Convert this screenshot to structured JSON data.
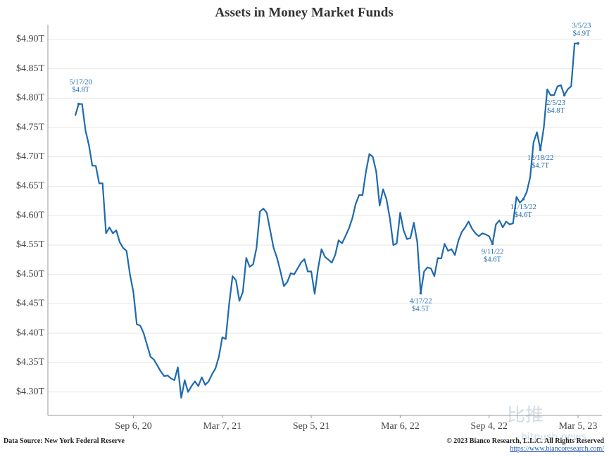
{
  "chart_data": {
    "type": "line",
    "title": "Assets in Money Market Funds",
    "x": [
      "2020-05-10",
      "2020-05-17",
      "2020-05-24",
      "2020-05-31",
      "2020-06-07",
      "2020-06-14",
      "2020-06-21",
      "2020-06-28",
      "2020-07-05",
      "2020-07-12",
      "2020-07-19",
      "2020-07-26",
      "2020-08-02",
      "2020-08-09",
      "2020-08-16",
      "2020-08-23",
      "2020-08-30",
      "2020-09-06",
      "2020-09-13",
      "2020-09-20",
      "2020-09-27",
      "2020-10-04",
      "2020-10-11",
      "2020-10-18",
      "2020-10-25",
      "2020-11-01",
      "2020-11-08",
      "2020-11-15",
      "2020-11-22",
      "2020-11-29",
      "2020-12-06",
      "2020-12-13",
      "2020-12-20",
      "2020-12-27",
      "2021-01-03",
      "2021-01-10",
      "2021-01-17",
      "2021-01-24",
      "2021-01-31",
      "2021-02-07",
      "2021-02-14",
      "2021-02-21",
      "2021-02-28",
      "2021-03-07",
      "2021-03-14",
      "2021-03-21",
      "2021-03-28",
      "2021-04-04",
      "2021-04-11",
      "2021-04-18",
      "2021-04-25",
      "2021-05-02",
      "2021-05-09",
      "2021-05-16",
      "2021-05-23",
      "2021-05-30",
      "2021-06-06",
      "2021-06-13",
      "2021-06-20",
      "2021-06-27",
      "2021-07-04",
      "2021-07-11",
      "2021-07-18",
      "2021-07-25",
      "2021-08-01",
      "2021-08-08",
      "2021-08-15",
      "2021-08-22",
      "2021-08-29",
      "2021-09-05",
      "2021-09-12",
      "2021-09-19",
      "2021-09-26",
      "2021-10-03",
      "2021-10-10",
      "2021-10-17",
      "2021-10-24",
      "2021-10-31",
      "2021-11-07",
      "2021-11-14",
      "2021-11-21",
      "2021-11-28",
      "2021-12-05",
      "2021-12-12",
      "2021-12-19",
      "2021-12-26",
      "2022-01-02",
      "2022-01-09",
      "2022-01-16",
      "2022-01-23",
      "2022-01-30",
      "2022-02-06",
      "2022-02-13",
      "2022-02-20",
      "2022-02-27",
      "2022-03-06",
      "2022-03-13",
      "2022-03-20",
      "2022-03-27",
      "2022-04-03",
      "2022-04-10",
      "2022-04-17",
      "2022-04-24",
      "2022-05-01",
      "2022-05-08",
      "2022-05-15",
      "2022-05-22",
      "2022-05-29",
      "2022-06-05",
      "2022-06-12",
      "2022-06-19",
      "2022-06-26",
      "2022-07-03",
      "2022-07-10",
      "2022-07-17",
      "2022-07-24",
      "2022-07-31",
      "2022-08-07",
      "2022-08-14",
      "2022-08-21",
      "2022-08-28",
      "2022-09-04",
      "2022-09-11",
      "2022-09-18",
      "2022-09-25",
      "2022-10-02",
      "2022-10-09",
      "2022-10-16",
      "2022-10-23",
      "2022-10-30",
      "2022-11-06",
      "2022-11-13",
      "2022-11-20",
      "2022-11-27",
      "2022-12-04",
      "2022-12-11",
      "2022-12-18",
      "2022-12-25",
      "2023-01-01",
      "2023-01-08",
      "2023-01-15",
      "2023-01-22",
      "2023-01-29",
      "2023-02-05",
      "2023-02-12",
      "2023-02-19",
      "2023-02-26",
      "2023-03-05"
    ],
    "series": [
      {
        "color": "#1f6aad",
        "values": [
          4.77,
          4.79,
          4.79,
          4.745,
          4.72,
          4.685,
          4.685,
          4.655,
          4.655,
          4.57,
          4.58,
          4.57,
          4.575,
          4.555,
          4.545,
          4.54,
          4.5,
          4.47,
          4.415,
          4.413,
          4.4,
          4.38,
          4.36,
          4.355,
          4.345,
          4.335,
          4.327,
          4.328,
          4.323,
          4.32,
          4.342,
          4.29,
          4.32,
          4.3,
          4.31,
          4.318,
          4.31,
          4.325,
          4.312,
          4.318,
          4.33,
          4.34,
          4.36,
          4.393,
          4.39,
          4.45,
          4.497,
          4.49,
          4.455,
          4.47,
          4.528,
          4.513,
          4.517,
          4.545,
          4.607,
          4.612,
          4.605,
          4.575,
          4.545,
          4.528,
          4.505,
          4.48,
          4.487,
          4.502,
          4.5,
          4.51,
          4.52,
          4.526,
          4.505,
          4.505,
          4.467,
          4.51,
          4.543,
          4.53,
          4.525,
          4.52,
          4.533,
          4.558,
          4.553,
          4.565,
          4.578,
          4.595,
          4.62,
          4.635,
          4.635,
          4.675,
          4.705,
          4.7,
          4.675,
          4.617,
          4.645,
          4.628,
          4.595,
          4.55,
          4.553,
          4.605,
          4.575,
          4.56,
          4.562,
          4.588,
          4.555,
          4.468,
          4.505,
          4.512,
          4.51,
          4.497,
          4.528,
          4.527,
          4.552,
          4.54,
          4.543,
          4.533,
          4.557,
          4.572,
          4.58,
          4.59,
          4.578,
          4.57,
          4.565,
          4.57,
          4.568,
          4.565,
          4.552,
          4.585,
          4.592,
          4.58,
          4.59,
          4.585,
          4.587,
          4.632,
          4.622,
          4.628,
          4.64,
          4.665,
          4.725,
          4.742,
          4.712,
          4.75,
          4.815,
          4.805,
          4.805,
          4.82,
          4.822,
          4.805,
          4.815,
          4.82,
          4.893,
          4.893
        ]
      }
    ],
    "xlim": [
      "2020-03-15",
      "2023-04-23"
    ],
    "xticks": [
      {
        "value": "2020-09-06",
        "label": "Sep 6, 20"
      },
      {
        "value": "2021-03-07",
        "label": "Mar 7, 21"
      },
      {
        "value": "2021-09-05",
        "label": "Sep 5, 21"
      },
      {
        "value": "2022-03-06",
        "label": "Mar 6, 22"
      },
      {
        "value": "2022-09-04",
        "label": "Sep 4, 22"
      },
      {
        "value": "2023-03-05",
        "label": "Mar 5, 23"
      }
    ],
    "ylim": [
      4.26,
      4.925
    ],
    "yticks": [
      {
        "value": 4.3,
        "label": "$4.30T"
      },
      {
        "value": 4.35,
        "label": "$4.35T"
      },
      {
        "value": 4.4,
        "label": "$4.40T"
      },
      {
        "value": 4.45,
        "label": "$4.45T"
      },
      {
        "value": 4.5,
        "label": "$4.50T"
      },
      {
        "value": 4.55,
        "label": "$4.55T"
      },
      {
        "value": 4.6,
        "label": "$4.60T"
      },
      {
        "value": 4.65,
        "label": "$4.65T"
      },
      {
        "value": 4.7,
        "label": "$4.70T"
      },
      {
        "value": 4.75,
        "label": "$4.75T"
      },
      {
        "value": 4.8,
        "label": "$4.80T"
      },
      {
        "value": 4.85,
        "label": "$4.85T"
      },
      {
        "value": 4.9,
        "label": "$4.90T"
      }
    ],
    "grid": true,
    "annotations": [
      {
        "x": "2020-05-17",
        "text": "5/17/20",
        "value_label": "$4.8T"
      },
      {
        "x": "2022-04-17",
        "text": "4/17/22",
        "value_label": "$4.5T"
      },
      {
        "x": "2022-09-11",
        "text": "9/11/22",
        "value_label": "$4.6T"
      },
      {
        "x": "2022-11-13",
        "text": "11/13/22",
        "value_label": "$4.6T"
      },
      {
        "x": "2022-12-18",
        "text": "12/18/22",
        "value_label": "$4.7T"
      },
      {
        "x": "2023-02-05",
        "text": "2/5/23",
        "value_label": "$4.8T"
      },
      {
        "x": "2023-03-05",
        "text": "3/5/23",
        "value_label": "$4.9T"
      }
    ]
  },
  "footer": {
    "source": "Data Source: New York Federal Reserve",
    "copyright": "© 2023 Bianco Research, L.L.C. All Rights Reserved",
    "url": "https://www.biancoresearch.com/"
  },
  "watermark": {
    "logo": "比推",
    "site": "bitpush.news"
  }
}
